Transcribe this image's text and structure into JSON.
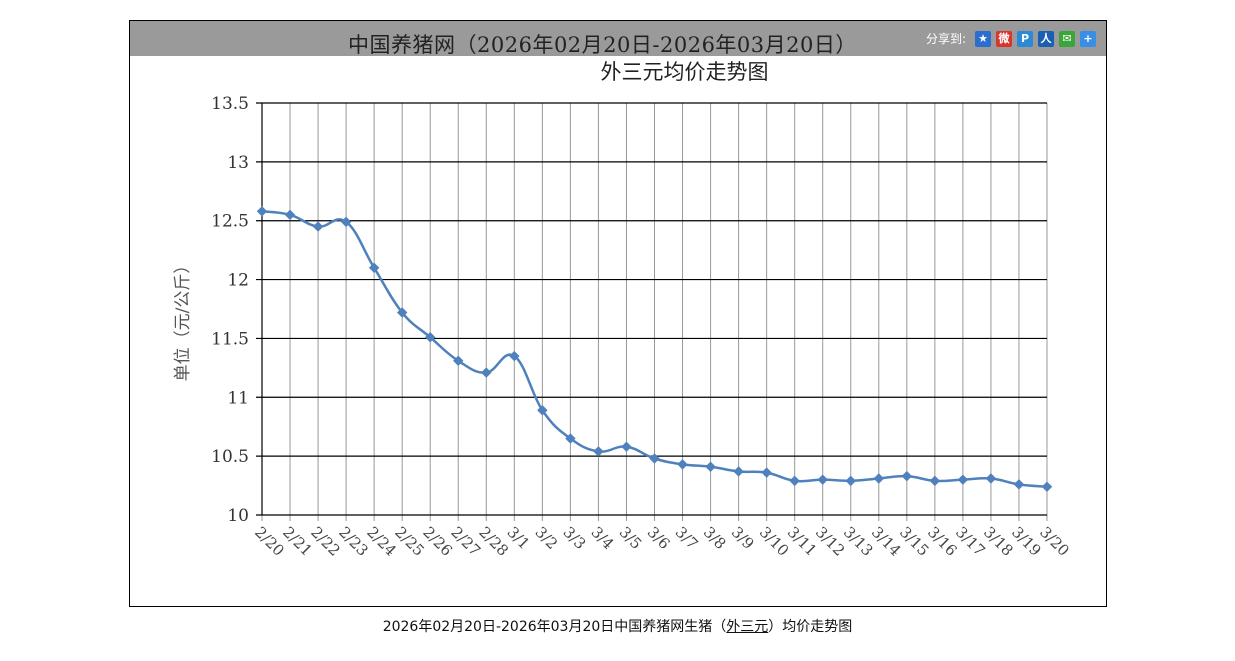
{
  "header": {
    "title": "中国养猪网（2026年02月20日-2026年03月20日）",
    "share_label": "分享到:",
    "share_icons": [
      {
        "name": "qzone-icon",
        "glyph": "★",
        "color": "#2a6fcf"
      },
      {
        "name": "weibo-icon",
        "glyph": "微",
        "color": "#d9352c"
      },
      {
        "name": "tencent-weibo-icon",
        "glyph": "P",
        "color": "#2b8ad6"
      },
      {
        "name": "renren-icon",
        "glyph": "人",
        "color": "#1a5fb4"
      },
      {
        "name": "wechat-icon",
        "glyph": "✉",
        "color": "#3aa53a"
      },
      {
        "name": "more-share-icon",
        "glyph": "+",
        "color": "#3a8ee6"
      }
    ]
  },
  "chart_data": {
    "type": "line",
    "title": "外三元均价走势图",
    "ylabel": "单位（元/公斤）",
    "xlabel": "",
    "ylim": [
      10,
      13.5
    ],
    "yticks": [
      "10",
      "10.5",
      "11",
      "11.5",
      "12",
      "12.5",
      "13",
      "13.5"
    ],
    "grid": true,
    "categories": [
      "2/20",
      "2/21",
      "2/22",
      "2/23",
      "2/24",
      "2/25",
      "2/26",
      "2/27",
      "2/28",
      "3/1",
      "3/2",
      "3/3",
      "3/4",
      "3/5",
      "3/6",
      "3/7",
      "3/8",
      "3/9",
      "3/10",
      "3/11",
      "3/12",
      "3/13",
      "3/14",
      "3/15",
      "3/16",
      "3/17",
      "3/18",
      "3/19",
      "3/20"
    ],
    "values": [
      12.58,
      12.55,
      12.45,
      12.49,
      12.1,
      11.72,
      11.51,
      11.31,
      11.21,
      11.35,
      10.89,
      10.65,
      10.54,
      10.58,
      10.48,
      10.43,
      10.41,
      10.37,
      10.36,
      10.29,
      10.3,
      10.29,
      10.31,
      10.33,
      10.29,
      10.3,
      10.31,
      10.26,
      10.24
    ],
    "line_color": "#4f81bd"
  },
  "caption": {
    "prefix": "2026年02月20日-2026年03月20日中国养猪网生猪（",
    "link": "外三元",
    "suffix": "）均价走势图"
  }
}
